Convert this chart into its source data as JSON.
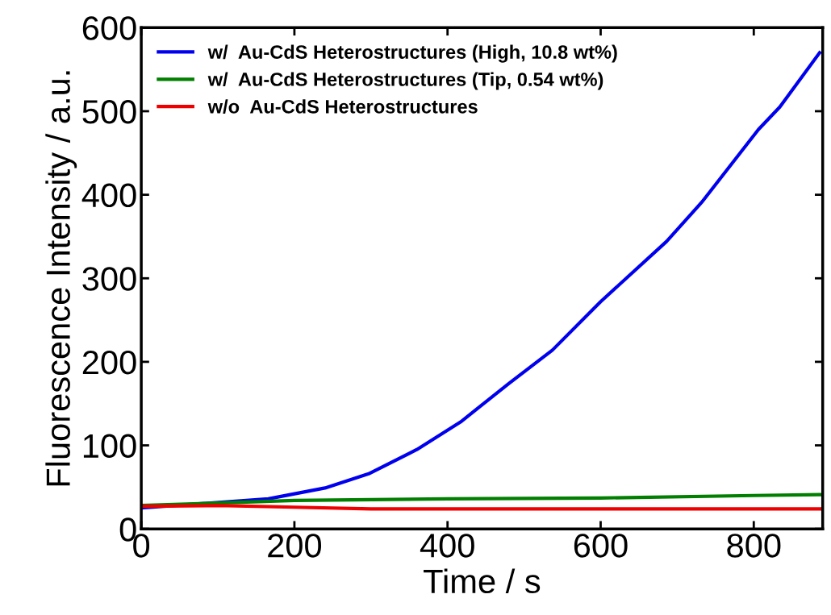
{
  "chart_data": {
    "type": "line",
    "xlabel": "Time / s",
    "ylabel": "Fluorescence Intensity / a.u.",
    "xlim": [
      0,
      890
    ],
    "xticks": [
      0,
      200,
      400,
      600,
      800
    ],
    "ylim": [
      0,
      600
    ],
    "yticks": [
      0,
      100,
      200,
      300,
      400,
      500,
      600
    ],
    "grid": false,
    "legend": "top left",
    "marker": "none",
    "line_style": "solid",
    "series": [
      {
        "name": "w/  Au-CdS Heterostructures (High, 10.8 wt%)",
        "color": "#0000ee",
        "x": [
          0,
          166,
          240,
          297,
          360,
          417,
          480,
          537,
          600,
          686,
          732,
          806,
          834,
          886
        ],
        "values": [
          25,
          36,
          49,
          66,
          95,
          128,
          174,
          214,
          272,
          344,
          391,
          478,
          505,
          570
        ]
      },
      {
        "name": "w/  Au-CdS Heterostructures (Tip, 0.54 wt%)",
        "color": "#007f00",
        "x": [
          0,
          200,
          400,
          600,
          800,
          890
        ],
        "values": [
          28,
          34,
          36,
          37,
          40,
          41
        ]
      },
      {
        "name": "w/o  Au-CdS Heterostructures",
        "color": "#ee0000",
        "x": [
          0,
          100,
          200,
          300,
          400,
          600,
          890
        ],
        "values": [
          27,
          28,
          26,
          24,
          24,
          24,
          24
        ]
      }
    ]
  }
}
